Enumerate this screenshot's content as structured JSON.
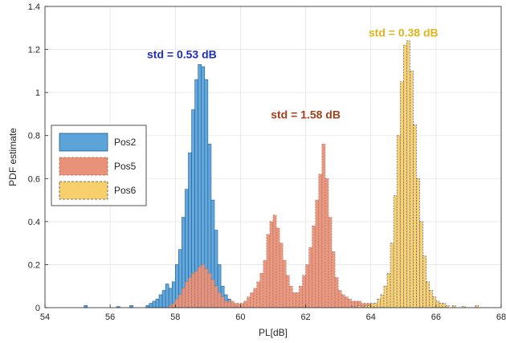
{
  "chart_data": {
    "type": "histogram",
    "xlabel": "PL[dB]",
    "ylabel": "PDF estimate",
    "xlim": [
      54,
      68
    ],
    "ylim": [
      0,
      1.4
    ],
    "xticks": [
      "54",
      "56",
      "58",
      "60",
      "62",
      "64",
      "66",
      "68"
    ],
    "yticks": [
      "0",
      "0.2",
      "0.4",
      "0.6",
      "0.8",
      "1",
      "1.2",
      "1.4"
    ],
    "bin_width": 0.1,
    "grid": true,
    "legend_position": "middle-left",
    "series": [
      {
        "name": "Pos2",
        "fill": "#5ba3d9",
        "edge": "#1f5f96",
        "dashed": false,
        "bins": [
          [
            55.2,
            0.01
          ],
          [
            56.2,
            0.005
          ],
          [
            56.6,
            0.01
          ],
          [
            57.1,
            0.01
          ],
          [
            57.2,
            0.02
          ],
          [
            57.3,
            0.03
          ],
          [
            57.4,
            0.04
          ],
          [
            57.5,
            0.06
          ],
          [
            57.6,
            0.08
          ],
          [
            57.7,
            0.11
          ],
          [
            57.8,
            0.09
          ],
          [
            57.9,
            0.12
          ],
          [
            58.0,
            0.2
          ],
          [
            58.1,
            0.27
          ],
          [
            58.2,
            0.42
          ],
          [
            58.3,
            0.55
          ],
          [
            58.4,
            0.72
          ],
          [
            58.5,
            0.92
          ],
          [
            58.6,
            1.06
          ],
          [
            58.7,
            1.13
          ],
          [
            58.8,
            1.12
          ],
          [
            58.9,
            1.06
          ],
          [
            59.0,
            0.76
          ],
          [
            59.1,
            0.5
          ],
          [
            59.2,
            0.36
          ],
          [
            59.3,
            0.2
          ],
          [
            59.4,
            0.1
          ],
          [
            59.5,
            0.06
          ],
          [
            59.6,
            0.04
          ],
          [
            59.7,
            0.02
          ],
          [
            59.8,
            0.01
          ]
        ]
      },
      {
        "name": "Pos5",
        "fill": "#e8927a",
        "edge": "#b0654f",
        "dashed": true,
        "bins": [
          [
            57.8,
            0.01
          ],
          [
            57.9,
            0.02
          ],
          [
            58.0,
            0.04
          ],
          [
            58.1,
            0.06
          ],
          [
            58.2,
            0.09
          ],
          [
            58.3,
            0.12
          ],
          [
            58.4,
            0.14
          ],
          [
            58.5,
            0.16
          ],
          [
            58.6,
            0.17
          ],
          [
            58.7,
            0.19
          ],
          [
            58.8,
            0.2
          ],
          [
            58.9,
            0.18
          ],
          [
            59.0,
            0.16
          ],
          [
            59.1,
            0.13
          ],
          [
            59.2,
            0.1
          ],
          [
            59.3,
            0.07
          ],
          [
            59.4,
            0.05
          ],
          [
            59.5,
            0.03
          ],
          [
            59.6,
            0.03
          ],
          [
            59.7,
            0.03
          ],
          [
            59.8,
            0.02
          ],
          [
            59.9,
            0.02
          ],
          [
            60.0,
            0.02
          ],
          [
            60.1,
            0.03
          ],
          [
            60.2,
            0.05
          ],
          [
            60.3,
            0.07
          ],
          [
            60.4,
            0.09
          ],
          [
            60.5,
            0.12
          ],
          [
            60.6,
            0.16
          ],
          [
            60.7,
            0.22
          ],
          [
            60.8,
            0.34
          ],
          [
            60.9,
            0.4
          ],
          [
            61.0,
            0.43
          ],
          [
            61.1,
            0.37
          ],
          [
            61.2,
            0.3
          ],
          [
            61.3,
            0.22
          ],
          [
            61.4,
            0.15
          ],
          [
            61.5,
            0.1
          ],
          [
            61.6,
            0.07
          ],
          [
            61.7,
            0.07
          ],
          [
            61.8,
            0.1
          ],
          [
            61.9,
            0.15
          ],
          [
            62.0,
            0.2
          ],
          [
            62.1,
            0.28
          ],
          [
            62.2,
            0.38
          ],
          [
            62.3,
            0.5
          ],
          [
            62.4,
            0.62
          ],
          [
            62.5,
            0.76
          ],
          [
            62.6,
            0.6
          ],
          [
            62.7,
            0.42
          ],
          [
            62.8,
            0.26
          ],
          [
            62.9,
            0.14
          ],
          [
            63.0,
            0.08
          ],
          [
            63.1,
            0.06
          ],
          [
            63.2,
            0.05
          ],
          [
            63.3,
            0.04
          ],
          [
            63.4,
            0.03
          ],
          [
            63.5,
            0.03
          ],
          [
            63.6,
            0.03
          ],
          [
            63.7,
            0.02
          ],
          [
            63.8,
            0.02
          ],
          [
            63.9,
            0.02
          ],
          [
            64.0,
            0.01
          ],
          [
            64.1,
            0.01
          ]
        ]
      },
      {
        "name": "Pos6",
        "fill": "#f7d06b",
        "edge": "#4a4a7a",
        "dashed": true,
        "bins": [
          [
            63.4,
            0.005
          ],
          [
            63.6,
            0.01
          ],
          [
            63.8,
            0.01
          ],
          [
            63.9,
            0.01
          ],
          [
            64.0,
            0.02
          ],
          [
            64.1,
            0.02
          ],
          [
            64.2,
            0.04
          ],
          [
            64.3,
            0.06
          ],
          [
            64.4,
            0.1
          ],
          [
            64.5,
            0.16
          ],
          [
            64.6,
            0.3
          ],
          [
            64.7,
            0.52
          ],
          [
            64.8,
            0.8
          ],
          [
            64.9,
            1.05
          ],
          [
            65.0,
            1.22
          ],
          [
            65.1,
            1.24
          ],
          [
            65.2,
            1.1
          ],
          [
            65.3,
            0.85
          ],
          [
            65.4,
            0.6
          ],
          [
            65.5,
            0.4
          ],
          [
            65.6,
            0.24
          ],
          [
            65.7,
            0.12
          ],
          [
            65.8,
            0.08
          ],
          [
            65.9,
            0.05
          ],
          [
            66.0,
            0.03
          ],
          [
            66.1,
            0.02
          ],
          [
            66.2,
            0.02
          ],
          [
            66.3,
            0.01
          ],
          [
            66.5,
            0.01
          ],
          [
            66.8,
            0.005
          ],
          [
            67.2,
            0.01
          ]
        ]
      }
    ],
    "annotations": [
      {
        "text": "std = 0.53 dB",
        "x": 58.2,
        "y": 1.16,
        "color": "#1f2fbf"
      },
      {
        "text": "std = 1.58 dB",
        "x": 62.0,
        "y": 0.88,
        "color": "#a3401a"
      },
      {
        "text": "std = 0.38 dB",
        "x": 65.0,
        "y": 1.26,
        "color": "#e0b51c"
      }
    ]
  }
}
